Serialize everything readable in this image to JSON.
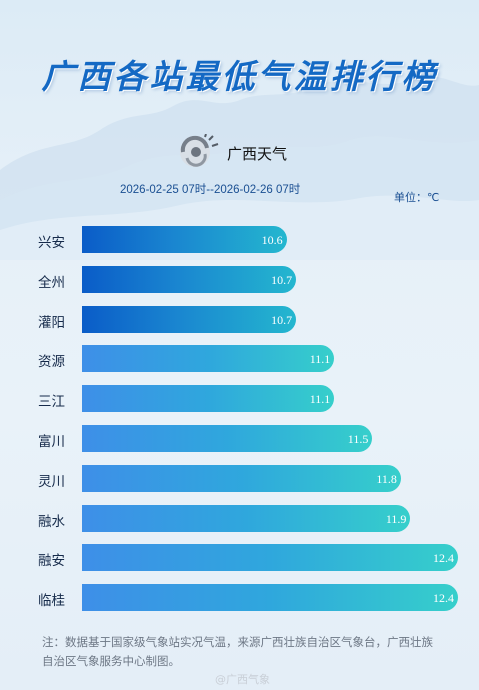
{
  "title": "广西各站最低气温排行榜",
  "logo_text": "广西天气",
  "date_range": "2026-02-25 07时--2026-02-26 07时",
  "unit": "单位：℃",
  "note": "注：数据基于国家级气象站实况气温，来源广西壮族自治区气象台，广西壮族自治区气象服务中心制图。",
  "watermark": "@广西气象",
  "colors": {
    "title": "#1469c4",
    "bar_dark_start": "#0a5cc8",
    "bar_dark_end": "#24b7cf",
    "bar_light_start": "#3e8fe8",
    "bar_light_end": "#36cfcb"
  },
  "chart_data": {
    "type": "bar",
    "orientation": "horizontal",
    "title": "广西各站最低气温排行榜",
    "unit": "℃",
    "categories": [
      "兴安",
      "全州",
      "灌阳",
      "资源",
      "三江",
      "富川",
      "灵川",
      "融水",
      "融安",
      "临桂"
    ],
    "values": [
      10.6,
      10.7,
      10.7,
      11.1,
      11.1,
      11.5,
      11.8,
      11.9,
      12.4,
      12.4
    ],
    "value_labels": [
      "10.6",
      "10.7",
      "10.7",
      "11.1",
      "11.1",
      "11.5",
      "11.8",
      "11.9",
      "12.4",
      "12.4"
    ],
    "bar_style": [
      "dark",
      "dark",
      "dark",
      "light",
      "light",
      "light",
      "light",
      "light",
      "light",
      "light"
    ]
  }
}
